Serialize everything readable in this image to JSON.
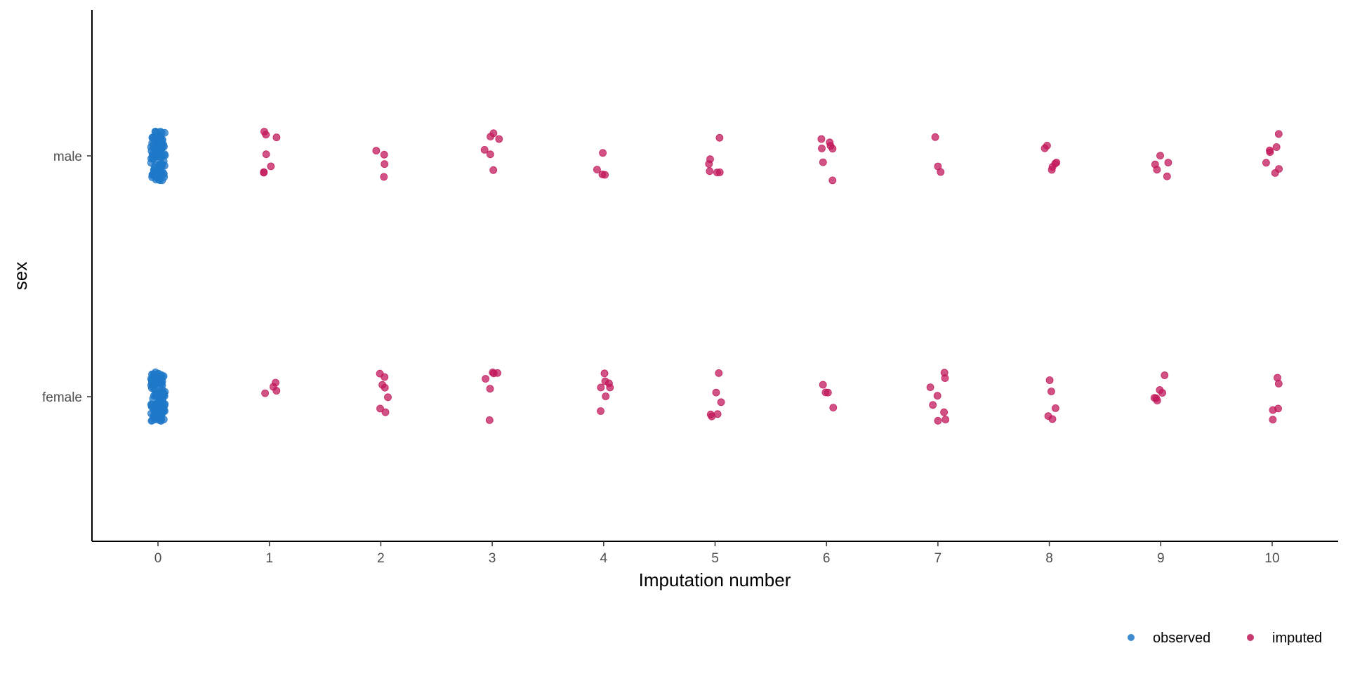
{
  "chart_data": {
    "type": "scatter",
    "title": "",
    "xlabel": "Imputation number",
    "ylabel": "sex",
    "x_ticks": [
      "0",
      "1",
      "2",
      "3",
      "4",
      "5",
      "6",
      "7",
      "8",
      "9",
      "10"
    ],
    "y_categories": [
      "female",
      "male"
    ],
    "xlim": [
      -0.6,
      10.6
    ],
    "grid": false,
    "legend_position": "bottom-right",
    "jitter": true,
    "legend": [
      {
        "name": "observed",
        "color": "#1f78c8"
      },
      {
        "name": "imputed",
        "color": "#c2185b"
      }
    ],
    "series": [
      {
        "name": "observed",
        "color": "#1f78c8",
        "points": [
          {
            "x": 0,
            "y": "male",
            "count": 110
          },
          {
            "x": 0,
            "y": "female",
            "count": 110
          }
        ]
      },
      {
        "name": "imputed",
        "color": "#c2185b",
        "points": [
          {
            "x": 1,
            "y": "male",
            "count": 7
          },
          {
            "x": 1,
            "y": "female",
            "count": 4
          },
          {
            "x": 2,
            "y": "male",
            "count": 4
          },
          {
            "x": 2,
            "y": "female",
            "count": 7
          },
          {
            "x": 3,
            "y": "male",
            "count": 6
          },
          {
            "x": 3,
            "y": "female",
            "count": 6
          },
          {
            "x": 4,
            "y": "male",
            "count": 4
          },
          {
            "x": 4,
            "y": "female",
            "count": 7
          },
          {
            "x": 5,
            "y": "male",
            "count": 6
          },
          {
            "x": 5,
            "y": "female",
            "count": 6
          },
          {
            "x": 6,
            "y": "male",
            "count": 7
          },
          {
            "x": 6,
            "y": "female",
            "count": 4
          },
          {
            "x": 7,
            "y": "male",
            "count": 3
          },
          {
            "x": 7,
            "y": "female",
            "count": 8
          },
          {
            "x": 8,
            "y": "male",
            "count": 6
          },
          {
            "x": 8,
            "y": "female",
            "count": 5
          },
          {
            "x": 9,
            "y": "male",
            "count": 5
          },
          {
            "x": 9,
            "y": "female",
            "count": 6
          },
          {
            "x": 10,
            "y": "male",
            "count": 7
          },
          {
            "x": 10,
            "y": "female",
            "count": 5
          }
        ]
      }
    ]
  }
}
